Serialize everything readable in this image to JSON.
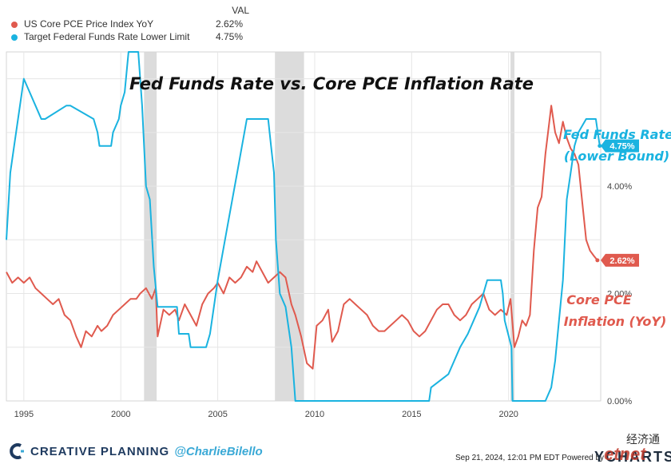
{
  "legend": {
    "header": "VAL",
    "items": [
      {
        "name": "US Core PCE Price Index YoY",
        "value": "2.62%",
        "color": "#e05a4e"
      },
      {
        "name": "Target Federal Funds Rate Lower Limit",
        "value": "4.75%",
        "color": "#1ab3e0"
      }
    ]
  },
  "chart_data": {
    "type": "line",
    "title": "Fed Funds Rate vs. Core PCE Inflation Rate",
    "xlim": [
      1994.1,
      2024.75
    ],
    "ylim": [
      0,
      6.5
    ],
    "x_ticks": [
      "1995",
      "2000",
      "2005",
      "2010",
      "2015",
      "2020"
    ],
    "x_tick_values": [
      1995,
      2000,
      2005,
      2010,
      2015,
      2020
    ],
    "y_ticks": [
      "0.00%",
      "2.00%",
      "4.00%"
    ],
    "y_tick_values": [
      0,
      2,
      4
    ],
    "grid": true,
    "recessions": [
      [
        2001.2,
        2001.85
      ],
      [
        2007.95,
        2009.45
      ],
      [
        2020.1,
        2020.3
      ]
    ],
    "series": [
      {
        "name": "US Core PCE Price Index YoY",
        "color": "#e05a4e",
        "end_label": "2.62%",
        "annotation": [
          "Core PCE",
          "Inflation (YoY)"
        ],
        "x": [
          1994.1,
          1994.4,
          1994.7,
          1995.0,
          1995.3,
          1995.6,
          1995.9,
          1996.2,
          1996.5,
          1996.8,
          1997.1,
          1997.4,
          1997.7,
          1997.95,
          1998.2,
          1998.5,
          1998.8,
          1999.0,
          1999.3,
          1999.6,
          1999.9,
          2000.2,
          2000.5,
          2000.8,
          2001.0,
          2001.3,
          2001.6,
          2001.8,
          2001.9,
          2002.2,
          2002.5,
          2002.8,
          2003.0,
          2003.3,
          2003.6,
          2003.9,
          2004.2,
          2004.5,
          2004.8,
          2005.0,
          2005.3,
          2005.6,
          2005.9,
          2006.2,
          2006.5,
          2006.8,
          2007.0,
          2007.3,
          2007.6,
          2007.9,
          2008.2,
          2008.5,
          2008.8,
          2009.0,
          2009.3,
          2009.6,
          2009.9,
          2010.1,
          2010.4,
          2010.7,
          2010.9,
          2011.2,
          2011.5,
          2011.8,
          2012.1,
          2012.4,
          2012.7,
          2013.0,
          2013.3,
          2013.6,
          2013.9,
          2014.2,
          2014.5,
          2014.8,
          2015.1,
          2015.4,
          2015.7,
          2016.0,
          2016.3,
          2016.6,
          2016.9,
          2017.2,
          2017.5,
          2017.8,
          2018.1,
          2018.4,
          2018.7,
          2019.0,
          2019.3,
          2019.6,
          2019.9,
          2020.1,
          2020.3,
          2020.5,
          2020.7,
          2020.9,
          2021.1,
          2021.3,
          2021.5,
          2021.7,
          2021.9,
          2022.1,
          2022.2,
          2022.4,
          2022.6,
          2022.8,
          2023.0,
          2023.2,
          2023.4,
          2023.6,
          2023.8,
          2024.0,
          2024.2,
          2024.4,
          2024.58
        ],
        "y": [
          2.4,
          2.2,
          2.3,
          2.2,
          2.3,
          2.1,
          2.0,
          1.9,
          1.8,
          1.9,
          1.6,
          1.5,
          1.2,
          1.0,
          1.3,
          1.2,
          1.4,
          1.3,
          1.4,
          1.6,
          1.7,
          1.8,
          1.9,
          1.9,
          2.0,
          2.1,
          1.9,
          2.1,
          1.2,
          1.7,
          1.6,
          1.7,
          1.5,
          1.8,
          1.6,
          1.4,
          1.8,
          2.0,
          2.1,
          2.2,
          2.0,
          2.3,
          2.2,
          2.3,
          2.5,
          2.4,
          2.6,
          2.4,
          2.2,
          2.3,
          2.4,
          2.3,
          1.8,
          1.6,
          1.2,
          0.7,
          0.6,
          1.4,
          1.5,
          1.7,
          1.1,
          1.3,
          1.8,
          1.9,
          1.8,
          1.7,
          1.6,
          1.4,
          1.3,
          1.3,
          1.4,
          1.5,
          1.6,
          1.5,
          1.3,
          1.2,
          1.3,
          1.5,
          1.7,
          1.8,
          1.8,
          1.6,
          1.5,
          1.6,
          1.8,
          1.9,
          2.0,
          1.7,
          1.6,
          1.7,
          1.6,
          1.9,
          1.0,
          1.2,
          1.5,
          1.4,
          1.6,
          2.8,
          3.6,
          3.8,
          4.6,
          5.2,
          5.5,
          5.0,
          4.8,
          5.2,
          4.9,
          4.7,
          4.6,
          4.4,
          3.7,
          3.0,
          2.8,
          2.7,
          2.62
        ]
      },
      {
        "name": "Target Federal Funds Rate Lower Limit",
        "color": "#1ab3e0",
        "end_label": "4.75%",
        "annotation": [
          "Fed Funds Rate",
          "(Lower Bound)"
        ],
        "x": [
          1994.1,
          1994.3,
          1994.5,
          1994.8,
          1995.0,
          1995.3,
          1995.6,
          1995.9,
          1996.1,
          1997.2,
          1997.4,
          1998.6,
          1998.8,
          1998.9,
          1999.5,
          1999.6,
          1999.9,
          2000.0,
          2000.2,
          2000.4,
          2000.9,
          2001.0,
          2001.1,
          2001.3,
          2001.5,
          2001.7,
          2001.9,
          2002.0,
          2002.9,
          2003.0,
          2003.5,
          2003.6,
          2004.4,
          2004.6,
          2005.0,
          2005.5,
          2006.0,
          2006.5,
          2007.6,
          2007.75,
          2007.9,
          2008.0,
          2008.2,
          2008.5,
          2008.8,
          2008.95,
          2009.0,
          2015.9,
          2016.0,
          2016.9,
          2017.2,
          2017.5,
          2017.9,
          2018.2,
          2018.5,
          2018.9,
          2019.6,
          2019.7,
          2019.8,
          2020.15,
          2020.2,
          2021.9,
          2022.2,
          2022.4,
          2022.6,
          2022.8,
          2023.0,
          2023.2,
          2023.4,
          2023.6,
          2024.0,
          2024.5,
          2024.7
        ],
        "y": [
          3.0,
          4.25,
          4.75,
          5.5,
          6.0,
          5.75,
          5.5,
          5.25,
          5.25,
          5.5,
          5.5,
          5.25,
          5.0,
          4.75,
          4.75,
          5.0,
          5.25,
          5.5,
          5.75,
          6.5,
          6.5,
          6.0,
          5.5,
          4.0,
          3.75,
          2.5,
          1.75,
          1.75,
          1.75,
          1.25,
          1.25,
          1.0,
          1.0,
          1.25,
          2.25,
          3.25,
          4.25,
          5.25,
          5.25,
          4.75,
          4.25,
          3.0,
          2.0,
          1.75,
          1.0,
          0.25,
          0.0,
          0.0,
          0.25,
          0.5,
          0.75,
          1.0,
          1.25,
          1.5,
          1.75,
          2.25,
          2.25,
          2.0,
          1.5,
          1.0,
          0.0,
          0.0,
          0.25,
          0.75,
          1.5,
          2.25,
          3.75,
          4.25,
          4.75,
          5.0,
          5.25,
          5.25,
          4.75
        ]
      }
    ]
  },
  "footer": {
    "brand": "CREATIVE PLANNING",
    "handle": "@CharlieBilello",
    "timestamp": "Sep 21, 2024, 12:01 PM EDT Powered by",
    "ycharts": "YCHARTS",
    "watermark_cn": "经济通",
    "watermark_en": "etnet"
  }
}
